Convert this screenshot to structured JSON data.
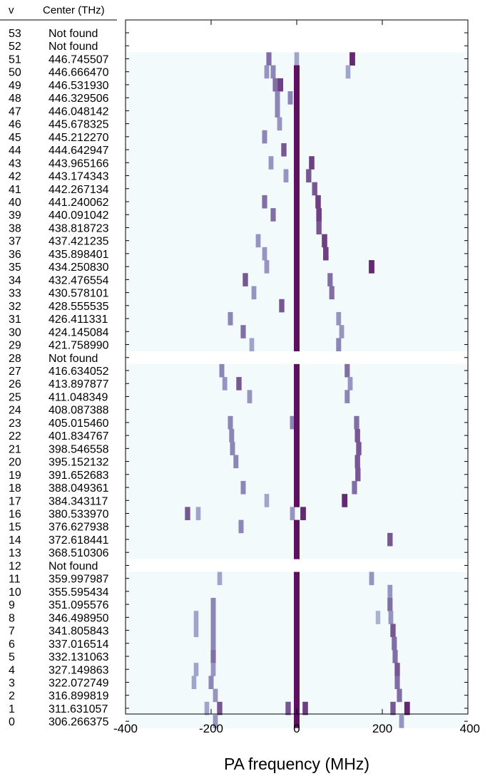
{
  "chart_data": {
    "type": "heatmap",
    "headers": {
      "v": "v",
      "center": "Center (THz)"
    },
    "xlabel": "PA frequency (MHz)",
    "xlim": [
      -400,
      400
    ],
    "xticks": [
      "-400",
      "-200",
      "0",
      "200",
      "400"
    ],
    "not_found_label": "Not found",
    "colors": {
      "faint": "#bcd0e4",
      "medium": "#8c86b8",
      "strong": "#5b1060",
      "background": "#f3fafb"
    },
    "rows": [
      {
        "v": "53",
        "center": "Not found",
        "features": []
      },
      {
        "v": "52",
        "center": "Not found",
        "features": []
      },
      {
        "v": "51",
        "center": "446.745507",
        "features": [
          [
            -65,
            0.6
          ],
          [
            0,
            0.3
          ],
          [
            130,
            0.9
          ]
        ]
      },
      {
        "v": "50",
        "center": "446.666470",
        "features": [
          [
            -70,
            0.4
          ],
          [
            -55,
            0.5
          ],
          [
            0,
            1.0
          ],
          [
            120,
            0.3
          ]
        ]
      },
      {
        "v": "49",
        "center": "446.531930",
        "features": [
          [
            -50,
            0.6
          ],
          [
            -38,
            0.8
          ],
          [
            0,
            1.0
          ]
        ]
      },
      {
        "v": "48",
        "center": "446.329506",
        "features": [
          [
            -45,
            0.5
          ],
          [
            -15,
            0.5
          ],
          [
            0,
            1.0
          ]
        ]
      },
      {
        "v": "47",
        "center": "446.048142",
        "features": [
          [
            -45,
            0.5
          ],
          [
            0,
            1.0
          ]
        ]
      },
      {
        "v": "46",
        "center": "445.678325",
        "features": [
          [
            -40,
            0.4
          ],
          [
            0,
            1.0
          ]
        ]
      },
      {
        "v": "45",
        "center": "445.212270",
        "features": [
          [
            -75,
            0.5
          ],
          [
            0,
            1.0
          ]
        ]
      },
      {
        "v": "44",
        "center": "444.642947",
        "features": [
          [
            -30,
            0.7
          ],
          [
            0,
            1.0
          ]
        ]
      },
      {
        "v": "43",
        "center": "443.965166",
        "features": [
          [
            -60,
            0.4
          ],
          [
            0,
            1.0
          ],
          [
            35,
            0.8
          ]
        ]
      },
      {
        "v": "42",
        "center": "443.174343",
        "features": [
          [
            -25,
            0.4
          ],
          [
            0,
            1.0
          ],
          [
            28,
            0.7
          ]
        ]
      },
      {
        "v": "41",
        "center": "442.267134",
        "features": [
          [
            0,
            1.0
          ],
          [
            42,
            0.7
          ]
        ]
      },
      {
        "v": "40",
        "center": "441.240062",
        "features": [
          [
            -75,
            0.6
          ],
          [
            0,
            1.0
          ],
          [
            50,
            0.8
          ]
        ]
      },
      {
        "v": "39",
        "center": "440.091042",
        "features": [
          [
            -55,
            0.6
          ],
          [
            0,
            1.0
          ],
          [
            52,
            0.8
          ]
        ]
      },
      {
        "v": "38",
        "center": "438.818723",
        "features": [
          [
            0,
            1.0
          ],
          [
            52,
            0.7
          ]
        ]
      },
      {
        "v": "37",
        "center": "437.421235",
        "features": [
          [
            -90,
            0.4
          ],
          [
            0,
            1.0
          ],
          [
            65,
            0.8
          ]
        ]
      },
      {
        "v": "36",
        "center": "435.898401",
        "features": [
          [
            -75,
            0.4
          ],
          [
            0,
            1.0
          ],
          [
            68,
            0.8
          ]
        ]
      },
      {
        "v": "35",
        "center": "434.250830",
        "features": [
          [
            -70,
            0.4
          ],
          [
            0,
            1.0
          ],
          [
            175,
            0.9
          ]
        ]
      },
      {
        "v": "34",
        "center": "432.476554",
        "features": [
          [
            -120,
            0.7
          ],
          [
            0,
            1.0
          ],
          [
            78,
            0.6
          ]
        ]
      },
      {
        "v": "33",
        "center": "430.578101",
        "features": [
          [
            -100,
            0.4
          ],
          [
            0,
            1.0
          ],
          [
            82,
            0.6
          ]
        ]
      },
      {
        "v": "32",
        "center": "428.555535",
        "features": [
          [
            -35,
            0.7
          ],
          [
            0,
            1.0
          ]
        ]
      },
      {
        "v": "31",
        "center": "426.411331",
        "features": [
          [
            -155,
            0.5
          ],
          [
            0,
            1.0
          ],
          [
            98,
            0.4
          ]
        ]
      },
      {
        "v": "30",
        "center": "424.145084",
        "features": [
          [
            -125,
            0.6
          ],
          [
            0,
            1.0
          ],
          [
            105,
            0.4
          ]
        ]
      },
      {
        "v": "29",
        "center": "421.758990",
        "features": [
          [
            -105,
            0.3
          ],
          [
            0,
            1.0
          ],
          [
            98,
            0.5
          ]
        ]
      },
      {
        "v": "28",
        "center": "Not found",
        "features": []
      },
      {
        "v": "27",
        "center": "416.634052",
        "features": [
          [
            -175,
            0.5
          ],
          [
            0,
            1.0
          ],
          [
            118,
            0.6
          ]
        ]
      },
      {
        "v": "26",
        "center": "413.897877",
        "features": [
          [
            -168,
            0.4
          ],
          [
            -135,
            0.7
          ],
          [
            0,
            1.0
          ],
          [
            125,
            0.4
          ]
        ]
      },
      {
        "v": "25",
        "center": "411.048349",
        "features": [
          [
            -110,
            0.4
          ],
          [
            0,
            1.0
          ],
          [
            118,
            0.5
          ]
        ]
      },
      {
        "v": "24",
        "center": "408.087388",
        "features": [
          [
            0,
            1.0
          ]
        ]
      },
      {
        "v": "23",
        "center": "405.015460",
        "features": [
          [
            -155,
            0.5
          ],
          [
            -10,
            0.5
          ],
          [
            0,
            1.0
          ],
          [
            140,
            0.6
          ]
        ]
      },
      {
        "v": "22",
        "center": "401.834767",
        "features": [
          [
            -152,
            0.5
          ],
          [
            0,
            1.0
          ],
          [
            142,
            0.7
          ]
        ]
      },
      {
        "v": "21",
        "center": "398.546558",
        "features": [
          [
            -150,
            0.5
          ],
          [
            0,
            1.0
          ],
          [
            145,
            0.7
          ]
        ]
      },
      {
        "v": "20",
        "center": "395.152132",
        "features": [
          [
            -142,
            0.5
          ],
          [
            0,
            1.0
          ],
          [
            142,
            0.7
          ]
        ]
      },
      {
        "v": "19",
        "center": "391.652683",
        "features": [
          [
            0,
            1.0
          ],
          [
            143,
            0.7
          ]
        ]
      },
      {
        "v": "18",
        "center": "388.049361",
        "features": [
          [
            -125,
            0.5
          ],
          [
            0,
            1.0
          ],
          [
            135,
            0.6
          ]
        ]
      },
      {
        "v": "17",
        "center": "384.343117",
        "features": [
          [
            -70,
            0.3
          ],
          [
            0,
            1.0
          ],
          [
            112,
            0.9
          ]
        ]
      },
      {
        "v": "16",
        "center": "380.533970",
        "features": [
          [
            -255,
            0.7
          ],
          [
            -230,
            0.3
          ],
          [
            -10,
            0.4
          ],
          [
            15,
            0.9
          ]
        ]
      },
      {
        "v": "15",
        "center": "376.627938",
        "features": [
          [
            -130,
            0.5
          ],
          [
            0,
            1.0
          ]
        ]
      },
      {
        "v": "14",
        "center": "372.618441",
        "features": [
          [
            0,
            1.0
          ],
          [
            218,
            0.7
          ]
        ]
      },
      {
        "v": "13",
        "center": "368.510306",
        "features": [
          [
            0,
            1.0
          ]
        ]
      },
      {
        "v": "12",
        "center": "Not found",
        "features": []
      },
      {
        "v": "11",
        "center": "359.997987",
        "features": [
          [
            -180,
            0.3
          ],
          [
            0,
            1.0
          ],
          [
            175,
            0.4
          ]
        ]
      },
      {
        "v": "10",
        "center": "355.595434",
        "features": [
          [
            0,
            1.0
          ],
          [
            218,
            0.4
          ]
        ]
      },
      {
        "v": "9",
        "center": "351.095576",
        "features": [
          [
            -195,
            0.5
          ],
          [
            0,
            1.0
          ],
          [
            218,
            0.6
          ]
        ]
      },
      {
        "v": "8",
        "center": "346.498950",
        "features": [
          [
            -235,
            0.3
          ],
          [
            -195,
            0.5
          ],
          [
            0,
            1.0
          ],
          [
            190,
            0.2
          ],
          [
            220,
            0.4
          ]
        ]
      },
      {
        "v": "7",
        "center": "341.805843",
        "features": [
          [
            -235,
            0.3
          ],
          [
            -195,
            0.5
          ],
          [
            0,
            1.0
          ],
          [
            225,
            0.7
          ]
        ]
      },
      {
        "v": "6",
        "center": "337.016514",
        "features": [
          [
            -195,
            0.5
          ],
          [
            0,
            1.0
          ],
          [
            228,
            0.6
          ]
        ]
      },
      {
        "v": "5",
        "center": "332.131063",
        "features": [
          [
            -195,
            0.6
          ],
          [
            0,
            1.0
          ],
          [
            230,
            0.6
          ]
        ]
      },
      {
        "v": "4",
        "center": "327.149863",
        "features": [
          [
            -235,
            0.3
          ],
          [
            -195,
            0.4
          ],
          [
            0,
            1.0
          ],
          [
            235,
            0.7
          ]
        ]
      },
      {
        "v": "3",
        "center": "322.072749",
        "features": [
          [
            -240,
            0.3
          ],
          [
            -200,
            0.5
          ],
          [
            0,
            1.0
          ],
          [
            235,
            0.6
          ]
        ]
      },
      {
        "v": "2",
        "center": "316.899819",
        "features": [
          [
            -190,
            0.4
          ],
          [
            0,
            1.0
          ],
          [
            240,
            0.6
          ]
        ]
      },
      {
        "v": "1",
        "center": "311.631057",
        "features": [
          [
            -210,
            0.3
          ],
          [
            -180,
            0.7
          ],
          [
            -20,
            0.7
          ],
          [
            0,
            1.0
          ],
          [
            20,
            0.8
          ],
          [
            225,
            0.7
          ],
          [
            258,
            0.9
          ]
        ]
      },
      {
        "v": "0",
        "center": "306.266375",
        "features": [
          [
            -190,
            0.4
          ],
          [
            0,
            1.0
          ],
          [
            245,
            0.4
          ]
        ]
      }
    ]
  }
}
